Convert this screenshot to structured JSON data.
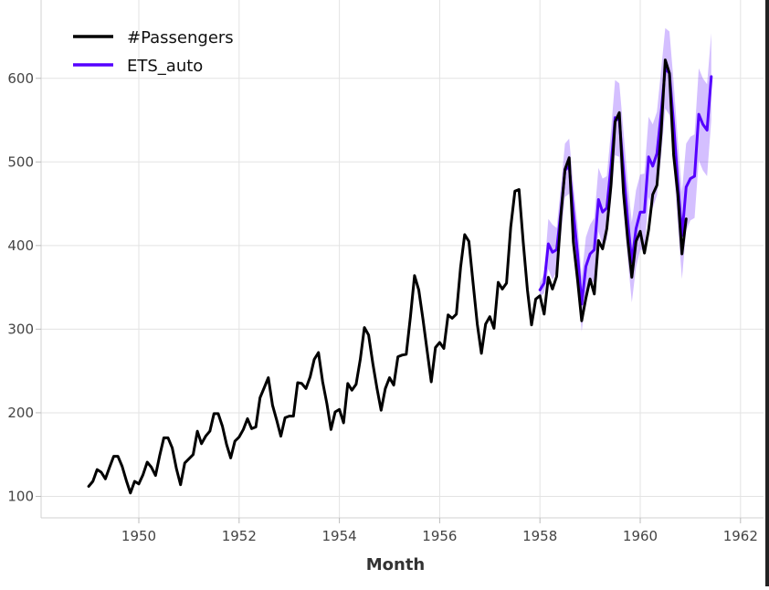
{
  "chart_data": {
    "type": "line",
    "xlabel": "Month",
    "ylabel": "",
    "xlim": [
      1948.75,
      1962.0
    ],
    "ylim": [
      80,
      680
    ],
    "grid": true,
    "legend_placement": "top-left",
    "x_ticks": [
      "1950",
      "1952",
      "1954",
      "1956",
      "1958",
      "1960",
      "1962"
    ],
    "y_ticks": [
      "100",
      "200",
      "300",
      "400",
      "500",
      "600"
    ],
    "series": [
      {
        "name": "#Passengers",
        "color": "#000000",
        "start_year": 1949,
        "values": [
          112,
          118,
          132,
          129,
          121,
          135,
          148,
          148,
          136,
          119,
          104,
          118,
          115,
          126,
          141,
          135,
          125,
          149,
          170,
          170,
          158,
          133,
          114,
          140,
          145,
          150,
          178,
          163,
          172,
          178,
          199,
          199,
          184,
          162,
          146,
          166,
          171,
          180,
          193,
          181,
          183,
          218,
          230,
          242,
          209,
          191,
          172,
          194,
          196,
          196,
          236,
          235,
          229,
          243,
          264,
          272,
          237,
          211,
          180,
          201,
          204,
          188,
          235,
          227,
          234,
          264,
          302,
          293,
          259,
          229,
          203,
          229,
          242,
          233,
          267,
          269,
          270,
          315,
          364,
          347,
          312,
          274,
          237,
          278,
          284,
          277,
          317,
          313,
          318,
          374,
          413,
          405,
          355,
          306,
          271,
          306,
          315,
          301,
          356,
          348,
          355,
          422,
          465,
          467,
          404,
          347,
          305,
          336,
          340,
          318,
          362,
          348,
          363,
          435,
          491,
          505,
          404,
          359,
          310,
          337,
          360,
          342,
          406,
          396,
          420,
          472,
          548,
          559,
          463,
          407,
          362,
          405,
          417,
          391,
          419,
          461,
          472,
          535,
          622,
          606,
          508,
          461,
          390,
          432
        ]
      },
      {
        "name": "ETS_auto",
        "color": "#5500ff",
        "start_year": 1958,
        "values": [
          347,
          355,
          402,
          392,
          395,
          440,
          490,
          495,
          440,
          390,
          330,
          375,
          390,
          395,
          455,
          440,
          445,
          495,
          553,
          550,
          490,
          430,
          380,
          420,
          440,
          440,
          506,
          495,
          510,
          558,
          612,
          606,
          545,
          475,
          412,
          470,
          480,
          483,
          557,
          545,
          538,
          602
        ],
        "band_half_width": [
          8,
          12,
          30,
          33,
          26,
          30,
          32,
          33,
          32,
          35,
          33,
          35,
          35,
          38,
          38,
          40,
          38,
          42,
          45,
          44,
          46,
          46,
          48,
          46,
          45,
          46,
          48,
          50,
          50,
          52,
          48,
          50,
          50,
          50,
          52,
          52,
          50,
          50,
          55,
          55,
          55,
          52
        ]
      }
    ]
  }
}
